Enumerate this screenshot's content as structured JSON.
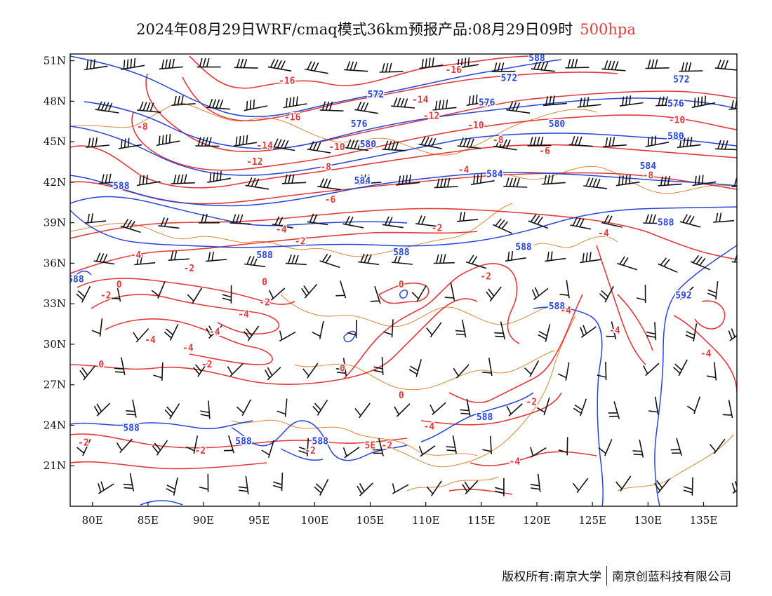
{
  "title": {
    "main": "2024年08月29日WRF/cmaq模式36km预报产品:08月29日09时",
    "level": "500hpa",
    "level_color": "#e23a3a"
  },
  "map": {
    "lon_range": [
      78,
      138
    ],
    "lat_range": [
      18,
      51.5
    ],
    "lat_ticks": [
      "51N",
      "48N",
      "45N",
      "42N",
      "39N",
      "36N",
      "33N",
      "30N",
      "27N",
      "24N",
      "21N"
    ],
    "lat_values": [
      51,
      48,
      45,
      42,
      39,
      36,
      33,
      30,
      27,
      24,
      21
    ],
    "lon_ticks": [
      "80E",
      "85E",
      "90E",
      "95E",
      "100E",
      "105E",
      "110E",
      "115E",
      "120E",
      "125E",
      "130E",
      "135E"
    ],
    "lon_values": [
      80,
      85,
      90,
      95,
      100,
      105,
      110,
      115,
      120,
      125,
      130,
      135
    ],
    "colors": {
      "temperature": "#e23a3a",
      "geopotential": "#2745d8",
      "borders": "#d98a3a",
      "wind_barbs": "#111111"
    },
    "height_labels": [
      {
        "text": "588",
        "lon": 120,
        "lat": 51.2
      },
      {
        "text": "572",
        "lon": 105.5,
        "lat": 48.5
      },
      {
        "text": "572",
        "lon": 117.5,
        "lat": 49.7
      },
      {
        "text": "572",
        "lon": 133,
        "lat": 49.6
      },
      {
        "text": "576",
        "lon": 104,
        "lat": 46.3
      },
      {
        "text": "576",
        "lon": 115.5,
        "lat": 47.9
      },
      {
        "text": "576",
        "lon": 132.5,
        "lat": 47.8
      },
      {
        "text": "580",
        "lon": 104.8,
        "lat": 44.8
      },
      {
        "text": "580",
        "lon": 121.8,
        "lat": 46.3
      },
      {
        "text": "580",
        "lon": 132.5,
        "lat": 45.4
      },
      {
        "text": "584",
        "lon": 104.3,
        "lat": 42.1
      },
      {
        "text": "584",
        "lon": 116.2,
        "lat": 42.6
      },
      {
        "text": "584",
        "lon": 130,
        "lat": 43.2
      },
      {
        "text": "588",
        "lon": 82.6,
        "lat": 41.7
      },
      {
        "text": "588",
        "lon": 95.5,
        "lat": 36.6
      },
      {
        "text": "588",
        "lon": 107.8,
        "lat": 36.8
      },
      {
        "text": "588",
        "lon": 118.8,
        "lat": 37.2
      },
      {
        "text": "588",
        "lon": 131.6,
        "lat": 39
      },
      {
        "text": "588",
        "lon": 78.5,
        "lat": 34.8
      },
      {
        "text": "588",
        "lon": 121.8,
        "lat": 32.8
      },
      {
        "text": "592",
        "lon": 133.2,
        "lat": 33.6
      },
      {
        "text": "588",
        "lon": 115.3,
        "lat": 24.6
      },
      {
        "text": "588",
        "lon": 83.5,
        "lat": 23.8
      },
      {
        "text": "588",
        "lon": 93.6,
        "lat": 22.8
      },
      {
        "text": "588",
        "lon": 100.5,
        "lat": 22.8
      }
    ],
    "temp_labels": [
      {
        "text": "-16",
        "lon": 97.5,
        "lat": 49.5
      },
      {
        "text": "-16",
        "lon": 112.5,
        "lat": 50.3
      },
      {
        "text": "-16",
        "lon": 98,
        "lat": 46.8
      },
      {
        "text": "-14",
        "lon": 109.5,
        "lat": 48.1
      },
      {
        "text": "-14",
        "lon": 95.5,
        "lat": 44.7
      },
      {
        "text": "-12",
        "lon": 110.5,
        "lat": 46.9
      },
      {
        "text": "-12",
        "lon": 94.6,
        "lat": 43.5
      },
      {
        "text": "-10",
        "lon": 102,
        "lat": 44.6
      },
      {
        "text": "-10",
        "lon": 114.5,
        "lat": 46.2
      },
      {
        "text": "-10",
        "lon": 132.6,
        "lat": 46.6
      },
      {
        "text": "-8",
        "lon": 84.5,
        "lat": 46.1
      },
      {
        "text": "-8",
        "lon": 116.5,
        "lat": 45.1
      },
      {
        "text": "-8",
        "lon": 101,
        "lat": 43.1
      },
      {
        "text": "-8",
        "lon": 130,
        "lat": 42.5
      },
      {
        "text": "-6",
        "lon": 120.7,
        "lat": 44.3
      },
      {
        "text": "-6",
        "lon": 101.4,
        "lat": 40.7
      },
      {
        "text": "-4",
        "lon": 113.4,
        "lat": 42.9
      },
      {
        "text": "-4",
        "lon": 97,
        "lat": 38.5
      },
      {
        "text": "-4",
        "lon": 83.9,
        "lat": 36.6
      },
      {
        "text": "-4",
        "lon": 126,
        "lat": 38.2
      },
      {
        "text": "-2",
        "lon": 98.7,
        "lat": 37.6
      },
      {
        "text": "-2",
        "lon": 88.7,
        "lat": 35.6
      },
      {
        "text": "-2",
        "lon": 111,
        "lat": 38.6
      },
      {
        "text": "-2",
        "lon": 115.4,
        "lat": 35
      },
      {
        "text": "0",
        "lon": 82.4,
        "lat": 34.4
      },
      {
        "text": "-2",
        "lon": 81.2,
        "lat": 33.6
      },
      {
        "text": "0",
        "lon": 95.5,
        "lat": 34.6
      },
      {
        "text": "-2",
        "lon": 95.5,
        "lat": 33.1
      },
      {
        "text": "-4",
        "lon": 93.6,
        "lat": 32.2
      },
      {
        "text": "-4",
        "lon": 91,
        "lat": 30.9
      },
      {
        "text": "-4",
        "lon": 85.2,
        "lat": 30.3
      },
      {
        "text": "-4",
        "lon": 88.6,
        "lat": 29.7
      },
      {
        "text": "-2",
        "lon": 90.3,
        "lat": 28.5
      },
      {
        "text": "0",
        "lon": 107.8,
        "lat": 34.4
      },
      {
        "text": "0",
        "lon": 80.8,
        "lat": 28.5
      },
      {
        "text": "0",
        "lon": 102.5,
        "lat": 28.2
      },
      {
        "text": "0",
        "lon": 107.8,
        "lat": 26.2
      },
      {
        "text": "-4",
        "lon": 122.6,
        "lat": 32.5
      },
      {
        "text": "-4",
        "lon": 127,
        "lat": 31
      },
      {
        "text": "-4",
        "lon": 135.2,
        "lat": 29.3
      },
      {
        "text": "-2",
        "lon": 119.5,
        "lat": 25.7
      },
      {
        "text": "-4",
        "lon": 110.3,
        "lat": 23.9
      },
      {
        "text": "-2",
        "lon": 79.2,
        "lat": 22.7
      },
      {
        "text": "-2",
        "lon": 89.7,
        "lat": 22.1
      },
      {
        "text": "-2",
        "lon": 99.6,
        "lat": 22.1
      },
      {
        "text": "5E",
        "lon": 105,
        "lat": 22.5
      },
      {
        "text": "-2",
        "lon": 106.5,
        "lat": 22.5
      },
      {
        "text": "-4",
        "lon": 118,
        "lat": 21.3
      }
    ]
  },
  "footer": {
    "left": "版权所有:南京大学",
    "right": "南京创蓝科技有限公司"
  }
}
